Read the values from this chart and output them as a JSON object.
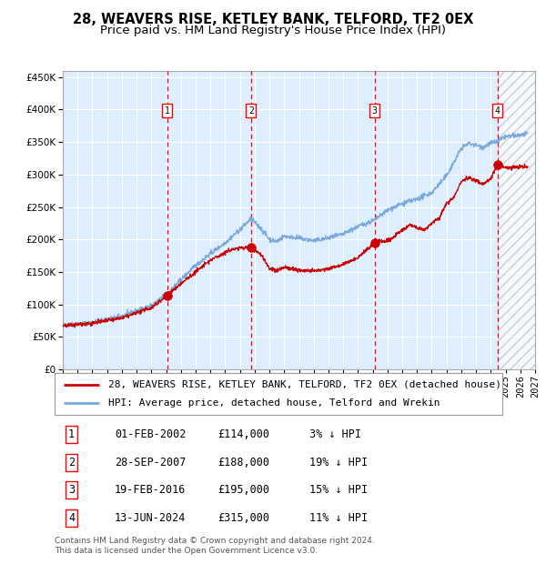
{
  "title": "28, WEAVERS RISE, KETLEY BANK, TELFORD, TF2 0EX",
  "subtitle": "Price paid vs. HM Land Registry's House Price Index (HPI)",
  "legend_line1": "28, WEAVERS RISE, KETLEY BANK, TELFORD, TF2 0EX (detached house)",
  "legend_line2": "HPI: Average price, detached house, Telford and Wrekin",
  "footer1": "Contains HM Land Registry data © Crown copyright and database right 2024.",
  "footer2": "This data is licensed under the Open Government Licence v3.0.",
  "transactions": [
    {
      "num": 1,
      "date": "01-FEB-2002",
      "price": 114000,
      "hpi_pct": "3% ↓ HPI",
      "x_year": 2002.08
    },
    {
      "num": 2,
      "date": "28-SEP-2007",
      "price": 188000,
      "hpi_pct": "19% ↓ HPI",
      "x_year": 2007.75
    },
    {
      "num": 3,
      "date": "19-FEB-2016",
      "price": 195000,
      "hpi_pct": "15% ↓ HPI",
      "x_year": 2016.13
    },
    {
      "num": 4,
      "date": "13-JUN-2024",
      "price": 315000,
      "hpi_pct": "11% ↓ HPI",
      "x_year": 2024.45
    }
  ],
  "hpi_color": "#7aaadd",
  "price_color": "#cc0000",
  "bg_color": "#ddeeff",
  "grid_color": "#ffffff",
  "ylim": [
    0,
    460000
  ],
  "xlim_start": 1995.0,
  "xlim_end": 2027.0,
  "future_shade_start": 2024.5,
  "title_fontsize": 10.5,
  "subtitle_fontsize": 9.5,
  "tick_fontsize": 7.5,
  "legend_fontsize": 8,
  "table_fontsize": 8.5,
  "footer_fontsize": 6.5
}
